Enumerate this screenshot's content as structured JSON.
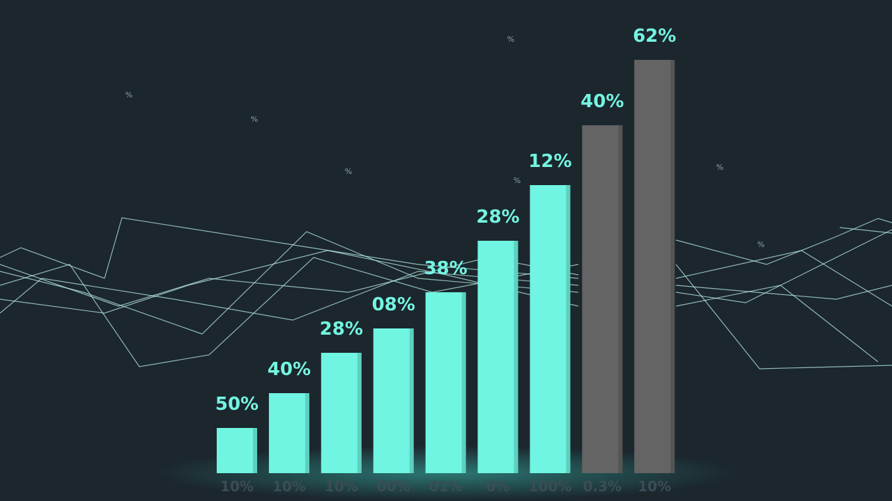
{
  "chart_data": {
    "type": "bar",
    "categories": [
      "10%",
      "10%",
      "10%",
      "00%",
      "01%",
      "0%",
      "100%",
      "0.3%",
      "10%"
    ],
    "values": [
      65,
      115,
      173,
      208,
      260,
      334,
      414,
      500,
      594
    ],
    "colors": [
      "#6ff5e1",
      "#6ff5e1",
      "#6ff5e1",
      "#6ff5e1",
      "#6ff5e1",
      "#6ff5e1",
      "#6ff5e1",
      "#646464",
      "#646464"
    ],
    "annotations": [
      "50%",
      "40%",
      "28%",
      "08%",
      "38%",
      "28%",
      "12%",
      "40%",
      "62%"
    ],
    "background_labels": [
      "%",
      "%",
      "%",
      "%",
      "%",
      "%",
      "%"
    ],
    "ylim": [
      0,
      600
    ]
  }
}
